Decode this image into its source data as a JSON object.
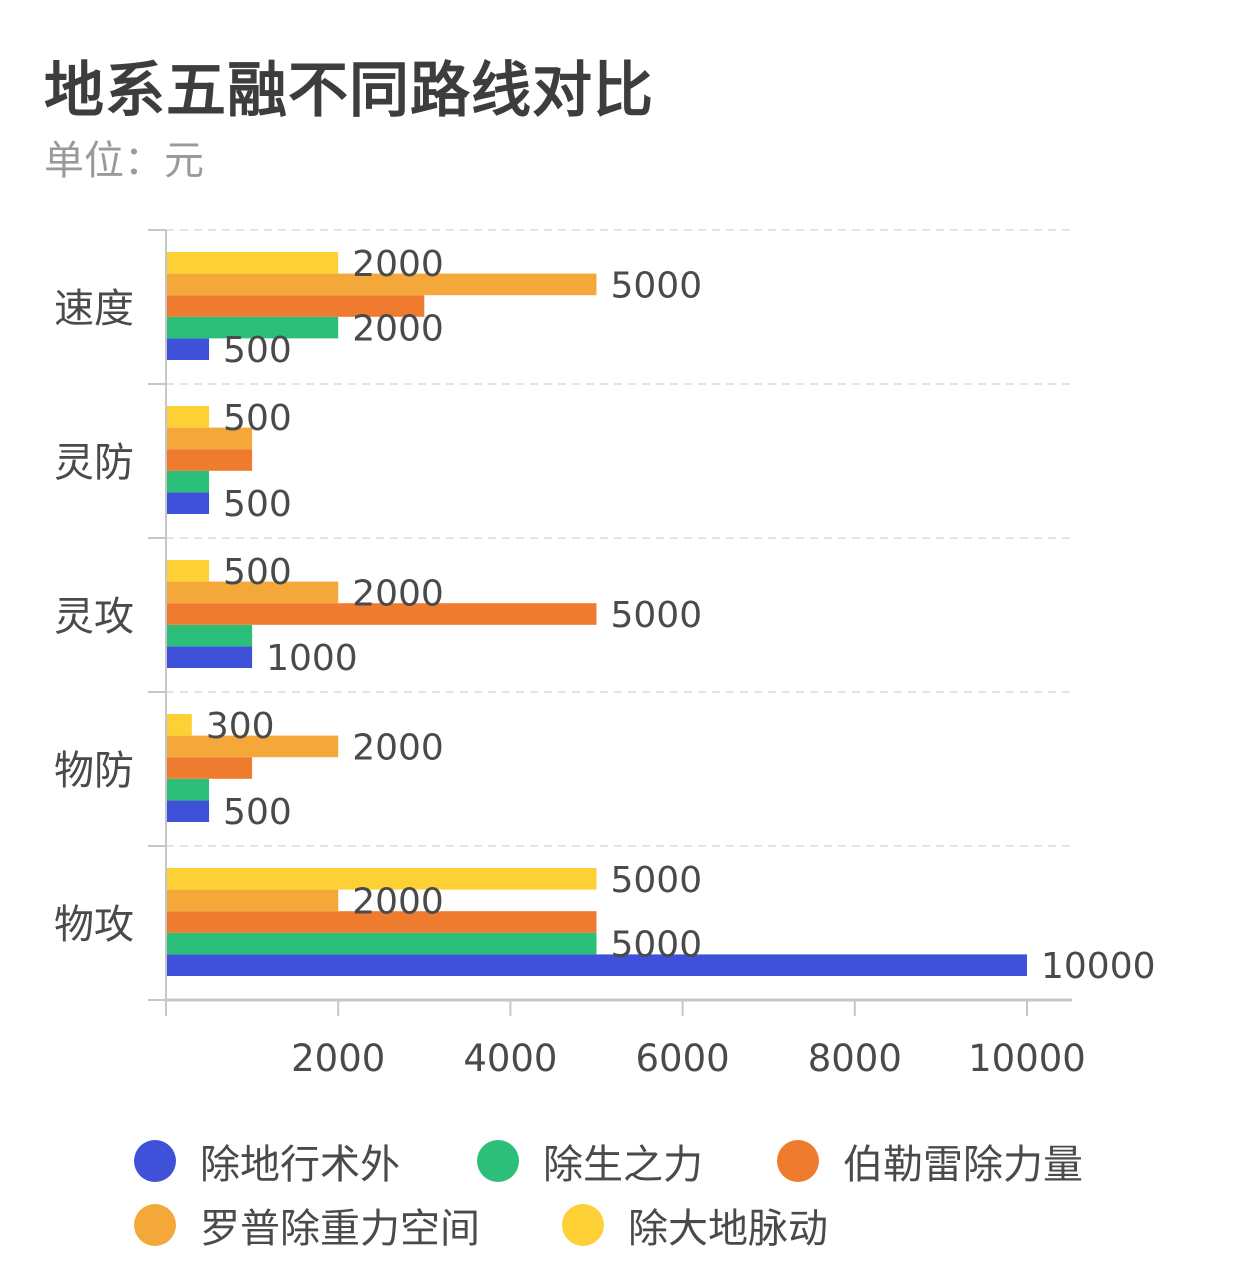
{
  "title": "地系五融不同路线对比",
  "subtitle": "单位：元",
  "chart_data": {
    "type": "bar",
    "orientation": "horizontal",
    "categories": [
      "速度",
      "灵防",
      "灵攻",
      "物防",
      "物攻"
    ],
    "series": [
      {
        "name": "除地行术外",
        "color": "#3f51d8",
        "values": [
          500,
          500,
          1000,
          500,
          10000
        ]
      },
      {
        "name": "除生之力",
        "color": "#2bbf7a",
        "values": [
          2000,
          500,
          1000,
          500,
          5000
        ]
      },
      {
        "name": "伯勒雷除力量",
        "color": "#ef7c2e",
        "values": [
          3000,
          1000,
          5000,
          1000,
          5000
        ]
      },
      {
        "name": "罗普除重力空间",
        "color": "#f5a83a",
        "values": [
          5000,
          1000,
          2000,
          2000,
          2000
        ]
      },
      {
        "name": "除大地脉动",
        "color": "#fdd035",
        "values": [
          2000,
          500,
          500,
          300,
          5000
        ]
      }
    ],
    "data_labels": [
      {
        "category": "速度",
        "series": "除地行术外",
        "text": "500"
      },
      {
        "category": "速度",
        "series": "除生之力",
        "text": "2000"
      },
      {
        "category": "速度",
        "series": "罗普除重力空间",
        "text": "5000"
      },
      {
        "category": "速度",
        "series": "除大地脉动",
        "text": "2000"
      },
      {
        "category": "灵防",
        "series": "除地行术外",
        "text": "500"
      },
      {
        "category": "灵防",
        "series": "除大地脉动",
        "text": "500"
      },
      {
        "category": "灵攻",
        "series": "除地行术外",
        "text": "1000"
      },
      {
        "category": "灵攻",
        "series": "伯勒雷除力量",
        "text": "5000"
      },
      {
        "category": "灵攻",
        "series": "罗普除重力空间",
        "text": "2000"
      },
      {
        "category": "灵攻",
        "series": "除大地脉动",
        "text": "500"
      },
      {
        "category": "物防",
        "series": "除地行术外",
        "text": "500"
      },
      {
        "category": "物防",
        "series": "罗普除重力空间",
        "text": "2000"
      },
      {
        "category": "物防",
        "series": "除大地脉动",
        "text": "300"
      },
      {
        "category": "物攻",
        "series": "除地行术外",
        "text": "10000"
      },
      {
        "category": "物攻",
        "series": "除生之力",
        "text": "5000"
      },
      {
        "category": "物攻",
        "series": "罗普除重力空间",
        "text": "2000"
      },
      {
        "category": "物攻",
        "series": "除大地脉动",
        "text": "5000"
      }
    ],
    "x_ticks": [
      "2000",
      "4000",
      "6000",
      "8000",
      "10000"
    ],
    "xlim": [
      0,
      10500
    ],
    "xlabel": "",
    "ylabel": "",
    "grid": "horizontal dashed",
    "legend_position": "bottom"
  },
  "colors": {
    "title": "#3d3d3d",
    "subtitle": "#9a9a9a",
    "axis": "#c6c6c6",
    "grid": "#e3e3e3",
    "label": "#4a4a4a"
  }
}
